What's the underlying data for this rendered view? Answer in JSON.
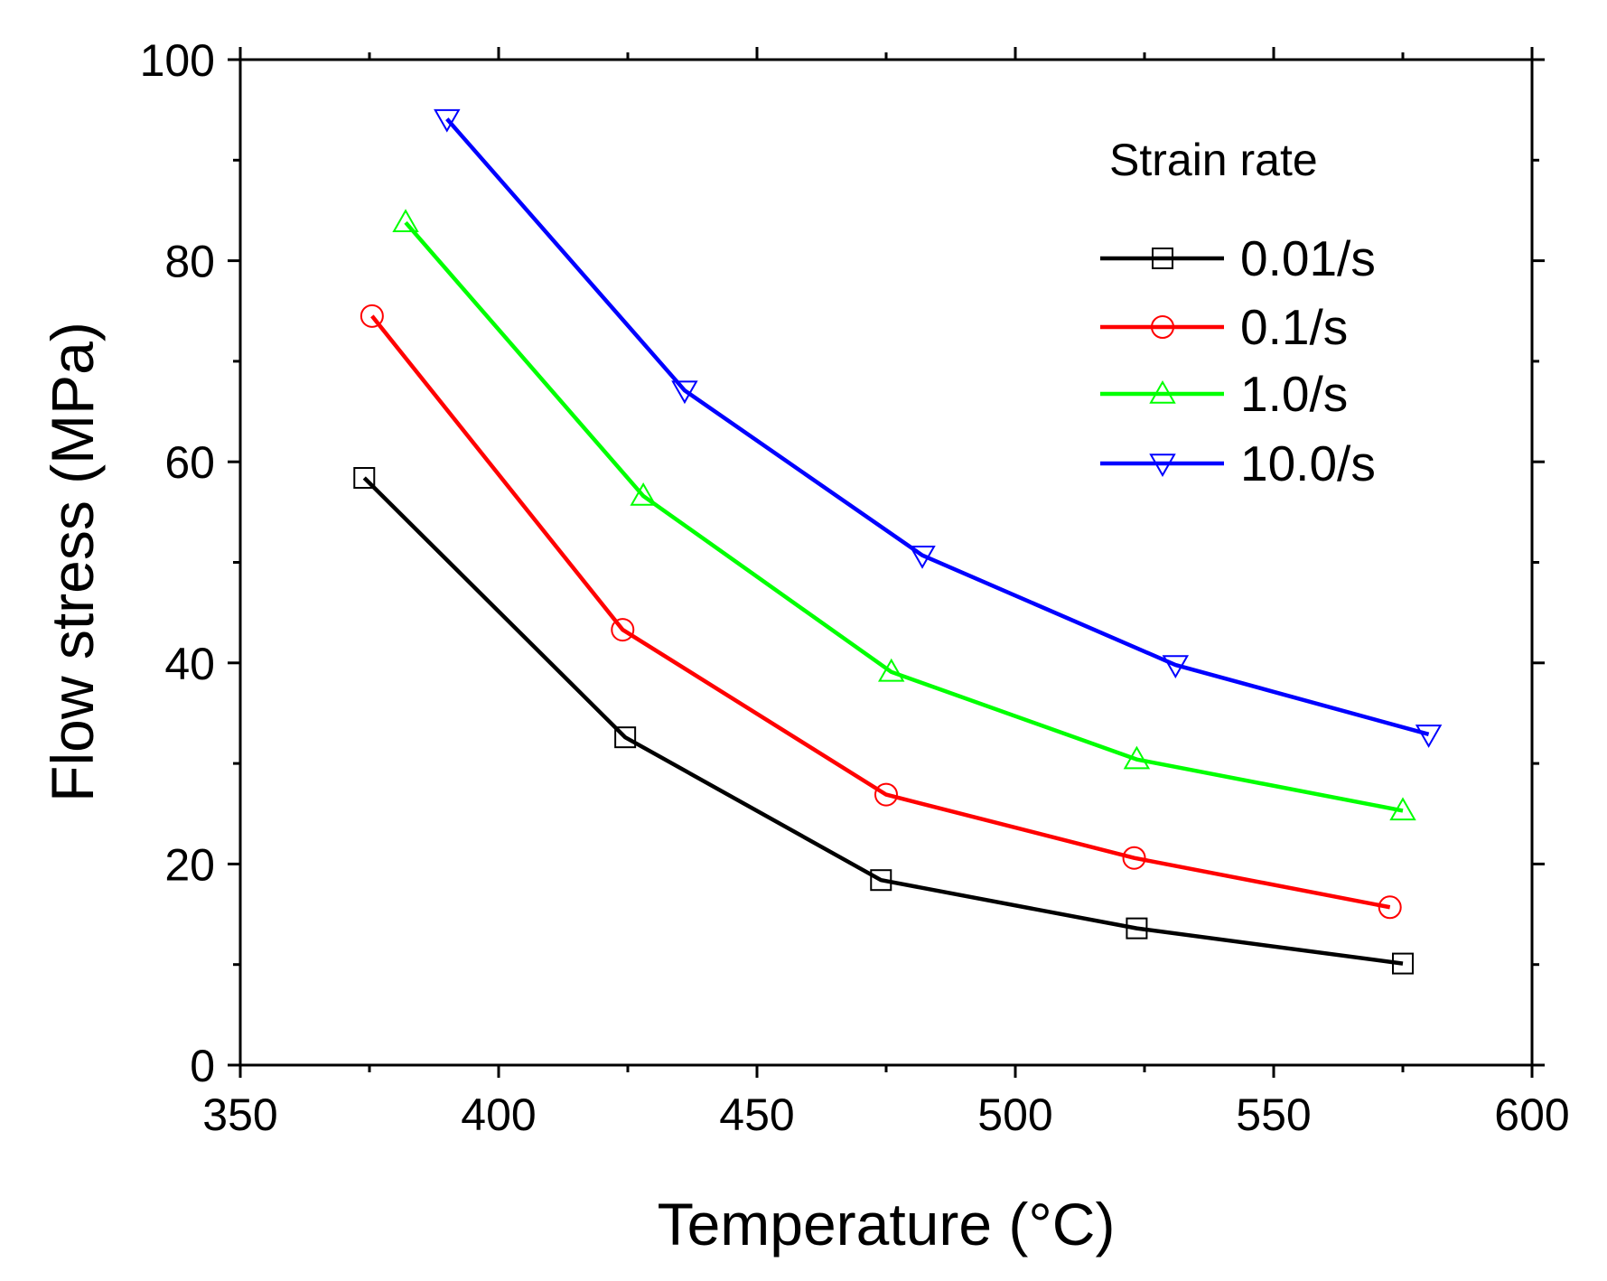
{
  "chart_data": {
    "type": "line",
    "title": "",
    "xlabel": "Temperature (°C)",
    "ylabel": "Flow stress (MPa)",
    "xlim": [
      350,
      600
    ],
    "ylim": [
      0,
      100
    ],
    "xticks": [
      350,
      400,
      450,
      500,
      550,
      600
    ],
    "yticks": [
      0,
      20,
      40,
      60,
      80,
      100
    ],
    "grid": false,
    "legend_title": "Strain rate",
    "legend_position": "top-right",
    "series": [
      {
        "name": "0.01/s",
        "color": "#000000",
        "marker": "square",
        "x": [
          374,
          424.5,
          474,
          523.5,
          575
        ],
        "y": [
          58.4,
          32.6,
          18.4,
          13.6,
          10.1
        ]
      },
      {
        "name": "0.1/s",
        "color": "#ff0000",
        "marker": "circle",
        "x": [
          375.5,
          424,
          475,
          523,
          572.5
        ],
        "y": [
          74.5,
          43.3,
          26.9,
          20.6,
          15.7
        ]
      },
      {
        "name": "1.0/s",
        "color": "#00ff00",
        "marker": "triangle-up",
        "x": [
          382,
          428,
          476,
          523.5,
          575
        ],
        "y": [
          83.8,
          56.6,
          39.1,
          30.4,
          25.3
        ]
      },
      {
        "name": "10.0/s",
        "color": "#0000ff",
        "marker": "triangle-down",
        "x": [
          390,
          436,
          482,
          531,
          580
        ],
        "y": [
          94.1,
          67.1,
          50.7,
          39.8,
          32.9
        ]
      }
    ]
  }
}
